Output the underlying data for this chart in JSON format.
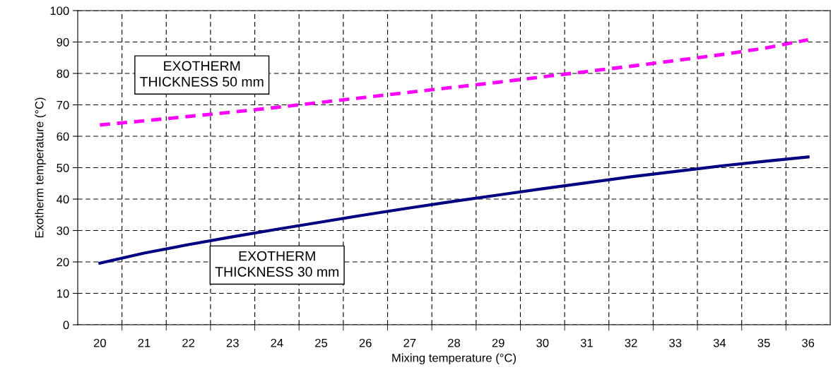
{
  "chart_data": {
    "type": "line",
    "xlabel": "Mixing temperature (°C)",
    "ylabel": "Exotherm temperature (°C)",
    "categories": [
      "20",
      "21",
      "22",
      "23",
      "24",
      "25",
      "26",
      "27",
      "28",
      "29",
      "30",
      "31",
      "32",
      "33",
      "34",
      "35",
      "36"
    ],
    "series": [
      {
        "name": "EXOTHERM\nTHICKNESS 50 mm",
        "color": "#ff00ff",
        "line_style": "dashed",
        "values": [
          63.6,
          64.9,
          66.3,
          67.7,
          69.2,
          70.8,
          72.4,
          74.0,
          75.6,
          77.2,
          78.9,
          80.6,
          82.3,
          84.1,
          85.9,
          88.0,
          90.7
        ]
      },
      {
        "name": "EXOTHERM\nTHICKNESS 30 mm",
        "color": "#000080",
        "line_style": "solid",
        "values": [
          19.6,
          22.8,
          25.5,
          28.0,
          30.4,
          32.7,
          35.0,
          37.2,
          39.3,
          41.3,
          43.3,
          45.2,
          47.1,
          48.8,
          50.5,
          52.0,
          53.4
        ]
      }
    ],
    "ylim": [
      0,
      100
    ],
    "yticks": [
      0,
      10,
      20,
      30,
      40,
      50,
      60,
      70,
      80,
      90,
      100
    ],
    "grid": true,
    "legend": false,
    "marker": "none"
  }
}
